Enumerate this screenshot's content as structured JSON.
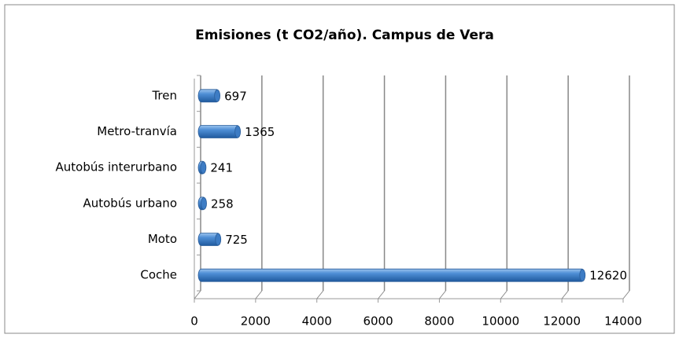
{
  "chart_data": {
    "type": "bar",
    "orientation": "horizontal",
    "title": "Emisiones (t CO2/año). Campus de Vera",
    "categories": [
      "Tren",
      "Metro-tranvía",
      "Autobús interurbano",
      "Autobús urbano",
      "Moto",
      "Coche"
    ],
    "values": [
      697,
      1365,
      241,
      258,
      725,
      12620
    ],
    "color": "#4f8fd6",
    "xlim": [
      0,
      14000
    ],
    "xticks": [
      0,
      2000,
      4000,
      6000,
      8000,
      10000,
      12000,
      14000
    ],
    "grid": true
  }
}
